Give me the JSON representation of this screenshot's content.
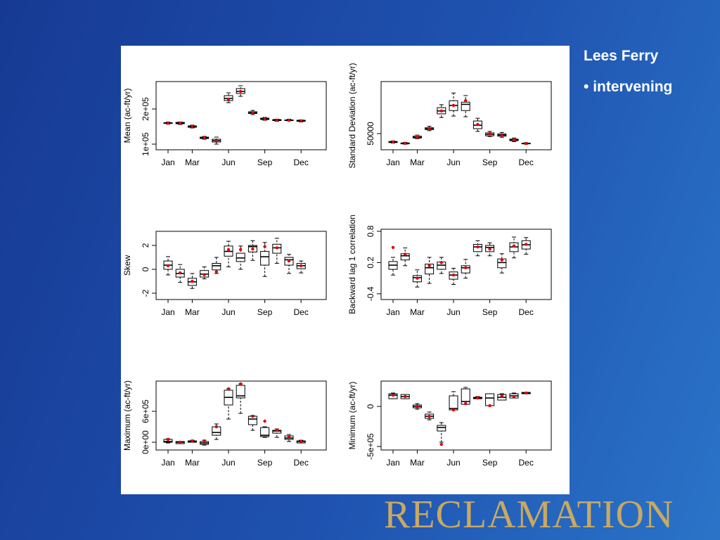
{
  "slide": {
    "title": "Lees Ferry",
    "bullets": [
      "intervening"
    ],
    "logo": "RECLAMATION"
  },
  "chart_data": [
    {
      "type": "box",
      "ylabel": "Mean (ac-ft/yr)",
      "color": "#000000",
      "mean_color": "#e00000",
      "categories": [
        "Jan",
        null,
        "Mar",
        null,
        null,
        "Jun",
        null,
        null,
        "Sep",
        null,
        null,
        "Dec"
      ],
      "ylim": [
        84000,
        278000
      ],
      "yticks": [
        {
          "value": 100000,
          "label": "1e+05"
        },
        {
          "value": 200000,
          "label": "2e+05"
        }
      ],
      "boxes": [
        {
          "min": 157000,
          "q1": 159000,
          "median": 160000,
          "q3": 161000,
          "max": 163000,
          "mean": 160000
        },
        {
          "min": 156000,
          "q1": 158000,
          "median": 160000,
          "q3": 162000,
          "max": 163000,
          "mean": 160000
        },
        {
          "min": 146000,
          "q1": 148000,
          "median": 150000,
          "q3": 152000,
          "max": 154000,
          "mean": 150000
        },
        {
          "min": 114000,
          "q1": 116000,
          "median": 118000,
          "q3": 120000,
          "max": 122000,
          "mean": 118000
        },
        {
          "min": 100000,
          "q1": 106000,
          "median": 110000,
          "q3": 114000,
          "max": 120000,
          "mean": 110000
        },
        {
          "min": 218000,
          "q1": 224000,
          "median": 230000,
          "q3": 238000,
          "max": 246000,
          "mean": 228000
        },
        {
          "min": 236000,
          "q1": 244000,
          "median": 250000,
          "q3": 258000,
          "max": 266000,
          "mean": 250000
        },
        {
          "min": 184000,
          "q1": 187000,
          "median": 190000,
          "q3": 192000,
          "max": 196000,
          "mean": 190000
        },
        {
          "min": 168000,
          "q1": 170000,
          "median": 172000,
          "q3": 174000,
          "max": 176000,
          "mean": 172000
        },
        {
          "min": 165000,
          "q1": 167000,
          "median": 168000,
          "q3": 170000,
          "max": 171000,
          "mean": 168000
        },
        {
          "min": 166000,
          "q1": 167000,
          "median": 168000,
          "q3": 169000,
          "max": 171000,
          "mean": 168000
        },
        {
          "min": 163000,
          "q1": 165000,
          "median": 166000,
          "q3": 168000,
          "max": 169000,
          "mean": 166000
        }
      ]
    },
    {
      "type": "box",
      "ylabel": "Standard Deviation (ac-ft/yr)",
      "color": "#000000",
      "mean_color": "#e00000",
      "categories": [
        "Jan",
        null,
        "Mar",
        null,
        null,
        "Jun",
        null,
        null,
        "Sep",
        null,
        null,
        "Dec"
      ],
      "ylim": [
        5800,
        192300
      ],
      "yticks": [
        50000
      ],
      "boxes": [
        {
          "min": 24000,
          "q1": 25500,
          "median": 27000,
          "q3": 28500,
          "max": 30000,
          "mean": 27000
        },
        {
          "min": 21000,
          "q1": 22000,
          "median": 23000,
          "q3": 24500,
          "max": 26000,
          "mean": 23500
        },
        {
          "min": 36000,
          "q1": 38000,
          "median": 40000,
          "q3": 43000,
          "max": 46000,
          "mean": 40000
        },
        {
          "min": 58000,
          "q1": 61000,
          "median": 63500,
          "q3": 66000,
          "max": 70000,
          "mean": 64000
        },
        {
          "min": 94000,
          "q1": 104000,
          "median": 112000,
          "q3": 121000,
          "max": 129000,
          "mean": 112000
        },
        {
          "min": 98000,
          "q1": 113000,
          "median": 127000,
          "q3": 140000,
          "max": 161000,
          "mean": 127000
        },
        {
          "min": 96000,
          "q1": 113000,
          "median": 130000,
          "q3": 136000,
          "max": 154000,
          "mean": 140000
        },
        {
          "min": 56000,
          "q1": 63500,
          "median": 73000,
          "q3": 84500,
          "max": 92000,
          "mean": 75000
        },
        {
          "min": 42000,
          "q1": 44000,
          "median": 48000,
          "q3": 52000,
          "max": 56000,
          "mean": 50000
        },
        {
          "min": 40000,
          "q1": 43000,
          "median": 46000,
          "q3": 49000,
          "max": 53000,
          "mean": 46000
        },
        {
          "min": 28000,
          "q1": 30500,
          "median": 32700,
          "q3": 35000,
          "max": 38000,
          "mean": 33000
        },
        {
          "min": 21000,
          "q1": 22000,
          "median": 23000,
          "q3": 24000,
          "max": 25000,
          "mean": 23000
        }
      ]
    },
    {
      "type": "box",
      "ylabel": "Skew",
      "color": "#000000",
      "mean_color": "#e00000",
      "categories": [
        "Jan",
        null,
        "Mar",
        null,
        null,
        "Jun",
        null,
        null,
        "Sep",
        null,
        null,
        "Dec"
      ],
      "ylim": [
        -2.53,
        3.18
      ],
      "yticks": [
        -2,
        0,
        2
      ],
      "boxes": [
        {
          "min": -0.47,
          "q1": 0,
          "median": 0.35,
          "q3": 0.7,
          "max": 1.06,
          "mean": 0.3
        },
        {
          "min": -1.1,
          "q1": -0.65,
          "median": -0.35,
          "q3": 0,
          "max": 0.4,
          "mean": -0.3
        },
        {
          "min": -1.6,
          "q1": -1.35,
          "median": -1.05,
          "q3": -0.75,
          "max": -0.35,
          "mean": -1.0
        },
        {
          "min": -0.8,
          "q1": -0.65,
          "median": -0.4,
          "q3": -0.1,
          "max": 0.2,
          "mean": -0.45
        },
        {
          "min": -0.35,
          "q1": -0.05,
          "median": 0.3,
          "q3": 0.5,
          "max": 1.0,
          "mean": -0.2
        },
        {
          "min": 0.2,
          "q1": 1.1,
          "median": 1.5,
          "q3": 1.95,
          "max": 2.35,
          "mean": 1.65
        },
        {
          "min": 0,
          "q1": 0.65,
          "median": 0.95,
          "q3": 1.35,
          "max": 1.95,
          "mean": 1.65
        },
        {
          "min": 0.75,
          "q1": 1.45,
          "median": 1.9,
          "q3": 2,
          "max": 2.4,
          "mean": 1.7
        },
        {
          "min": -0.6,
          "q1": 0.35,
          "median": 1.05,
          "q3": 1.5,
          "max": 2.25,
          "mean": 1.9
        },
        {
          "min": 0.5,
          "q1": 1.35,
          "median": 1.8,
          "q3": 2.1,
          "max": 2.6,
          "mean": 1.8
        },
        {
          "min": -0.35,
          "q1": 0.35,
          "median": 0.8,
          "q3": 1.0,
          "max": 1.25,
          "mean": 0.7
        },
        {
          "min": -0.3,
          "q1": 0.05,
          "median": 0.3,
          "q3": 0.5,
          "max": 0.7,
          "mean": 0.3
        }
      ]
    },
    {
      "type": "box",
      "ylabel": "Backward lag 1 correlation",
      "color": "#000000",
      "mean_color": "#e00000",
      "categories": [
        "Jan",
        null,
        "Mar",
        null,
        null,
        "Jun",
        null,
        null,
        "Sep",
        null,
        null,
        "Dec"
      ],
      "ylim": [
        -0.51,
        0.84
      ],
      "yticks": [
        -0.4,
        0.2,
        0.8
      ],
      "boxes": [
        {
          "min": -0.04,
          "q1": 0.07,
          "median": 0.15,
          "q3": 0.22,
          "max": 0.3,
          "mean": 0.49
        },
        {
          "min": 0.14,
          "q1": 0.25,
          "median": 0.33,
          "q3": 0.37,
          "max": 0.48,
          "mean": 0.36
        },
        {
          "min": -0.27,
          "q1": -0.17,
          "median": -0.09,
          "q3": -0.05,
          "max": 0.06,
          "mean": -0.1
        },
        {
          "min": -0.2,
          "q1": -0.02,
          "median": 0.1,
          "q3": 0.17,
          "max": 0.3,
          "mean": 0.14
        },
        {
          "min": -0.01,
          "q1": 0.07,
          "median": 0.15,
          "q3": 0.21,
          "max": 0.3,
          "mean": 0.2
        },
        {
          "min": -0.22,
          "q1": -0.12,
          "median": -0.04,
          "q3": 0.02,
          "max": 0.09,
          "mean": -0.04
        },
        {
          "min": -0.1,
          "q1": 0.0,
          "median": 0.1,
          "q3": 0.14,
          "max": 0.26,
          "mean": 0.1
        },
        {
          "min": 0.33,
          "q1": 0.41,
          "median": 0.5,
          "q3": 0.55,
          "max": 0.62,
          "mean": 0.5
        },
        {
          "min": 0.33,
          "q1": 0.41,
          "median": 0.49,
          "q3": 0.53,
          "max": 0.58,
          "mean": 0.46
        },
        {
          "min": 0.0,
          "q1": 0.1,
          "median": 0.2,
          "q3": 0.27,
          "max": 0.37,
          "mean": 0.25
        },
        {
          "min": 0.29,
          "q1": 0.41,
          "median": 0.5,
          "q3": 0.58,
          "max": 0.69,
          "mean": 0.52
        },
        {
          "min": 0.36,
          "q1": 0.46,
          "median": 0.54,
          "q3": 0.62,
          "max": 0.68,
          "mean": 0.55
        }
      ]
    },
    {
      "type": "box",
      "ylabel": "Maximum (ac-ft/yr)",
      "color": "#000000",
      "mean_color": "#e00000",
      "categories": [
        "Jan",
        null,
        "Mar",
        null,
        null,
        "Jun",
        null,
        null,
        "Sep",
        null,
        null,
        "Dec"
      ],
      "ylim": [
        -150000,
        1186000
      ],
      "yticks": [
        {
          "value": 0,
          "label": "0e+00"
        },
        {
          "value": 600000,
          "label": "6e+05"
        }
      ],
      "boxes": [
        {
          "min": -14000,
          "q1": 0,
          "median": 14000,
          "q3": 55000,
          "max": 68000,
          "mean": 55000
        },
        {
          "min": -27000,
          "q1": -27000,
          "median": 0,
          "q3": 14000,
          "max": 14000,
          "mean": 0
        },
        {
          "min": 0,
          "q1": 0,
          "median": 14000,
          "q3": 27000,
          "max": 40000,
          "mean": 27000
        },
        {
          "min": -55000,
          "q1": -41000,
          "median": -14000,
          "q3": 14000,
          "max": 40000,
          "mean": 27000
        },
        {
          "min": 55000,
          "q1": 136000,
          "median": 190000,
          "q3": 300000,
          "max": 355000,
          "mean": 300000
        },
        {
          "min": 450000,
          "q1": 723000,
          "median": 870000,
          "q3": 1009000,
          "max": 1036000,
          "mean": 1036000
        },
        {
          "min": 560000,
          "q1": 860000,
          "median": 900000,
          "q3": 1104000,
          "max": 1132000,
          "mean": 1132000
        },
        {
          "min": 232000,
          "q1": 341000,
          "median": 450000,
          "q3": 504000,
          "max": 518000,
          "mean": 504000
        },
        {
          "min": 95000,
          "q1": 109000,
          "median": 136000,
          "q3": 286000,
          "max": 300000,
          "mean": 409000
        },
        {
          "min": 95000,
          "q1": 177000,
          "median": 218000,
          "q3": 232000,
          "max": 259000,
          "mean": 232000
        },
        {
          "min": 14000,
          "q1": 55000,
          "median": 82000,
          "q3": 123000,
          "max": 150000,
          "mean": 109000
        },
        {
          "min": -14000,
          "q1": -14000,
          "median": 14000,
          "q3": 27000,
          "max": 40000,
          "mean": 14000
        }
      ]
    },
    {
      "type": "box",
      "ylabel": "Minimum (ac-ft/yr)",
      "color": "#000000",
      "mean_color": "#e00000",
      "categories": [
        "Jan",
        null,
        "Mar",
        null,
        null,
        "Jun",
        null,
        null,
        "Sep",
        null,
        null,
        "Dec"
      ],
      "ylim": [
        -543900,
        315800
      ],
      "yticks": [
        {
          "value": -500000,
          "label": "-5e+05"
        },
        0
      ],
      "boxes": [
        {
          "min": 96000,
          "q1": 96000,
          "median": 140000,
          "q3": 158000,
          "max": 167000,
          "mean": 140000
        },
        {
          "min": 96000,
          "q1": 96000,
          "median": 123000,
          "q3": 149000,
          "max": 149000,
          "mean": 123000
        },
        {
          "min": -35000,
          "q1": -18000,
          "median": 0,
          "q3": 18000,
          "max": 35000,
          "mean": 0
        },
        {
          "min": -167000,
          "q1": -149000,
          "median": -123000,
          "q3": -96000,
          "max": -70000,
          "mean": -123000
        },
        {
          "min": -447000,
          "q1": -307000,
          "median": -263000,
          "q3": -237000,
          "max": -202000,
          "mean": -474000
        },
        {
          "min": -44000,
          "q1": -44000,
          "median": -26000,
          "q3": 132000,
          "max": 184000,
          "mean": -44000
        },
        {
          "min": 26000,
          "q1": 26000,
          "median": 61000,
          "q3": 219000,
          "max": 237000,
          "mean": 35000
        },
        {
          "min": 96000,
          "q1": 96000,
          "median": 105000,
          "q3": 114000,
          "max": 123000,
          "mean": 105000
        },
        {
          "min": 9000,
          "q1": 9000,
          "median": 105000,
          "q3": 158000,
          "max": 158000,
          "mean": 9000
        },
        {
          "min": 79000,
          "q1": 79000,
          "median": 114000,
          "q3": 149000,
          "max": 158000,
          "mean": 132000
        },
        {
          "min": 105000,
          "q1": 105000,
          "median": 132000,
          "q3": 158000,
          "max": 167000,
          "mean": 123000
        },
        {
          "min": 158000,
          "q1": 158000,
          "median": 167000,
          "q3": 175000,
          "max": 175000,
          "mean": 167000
        }
      ]
    }
  ]
}
